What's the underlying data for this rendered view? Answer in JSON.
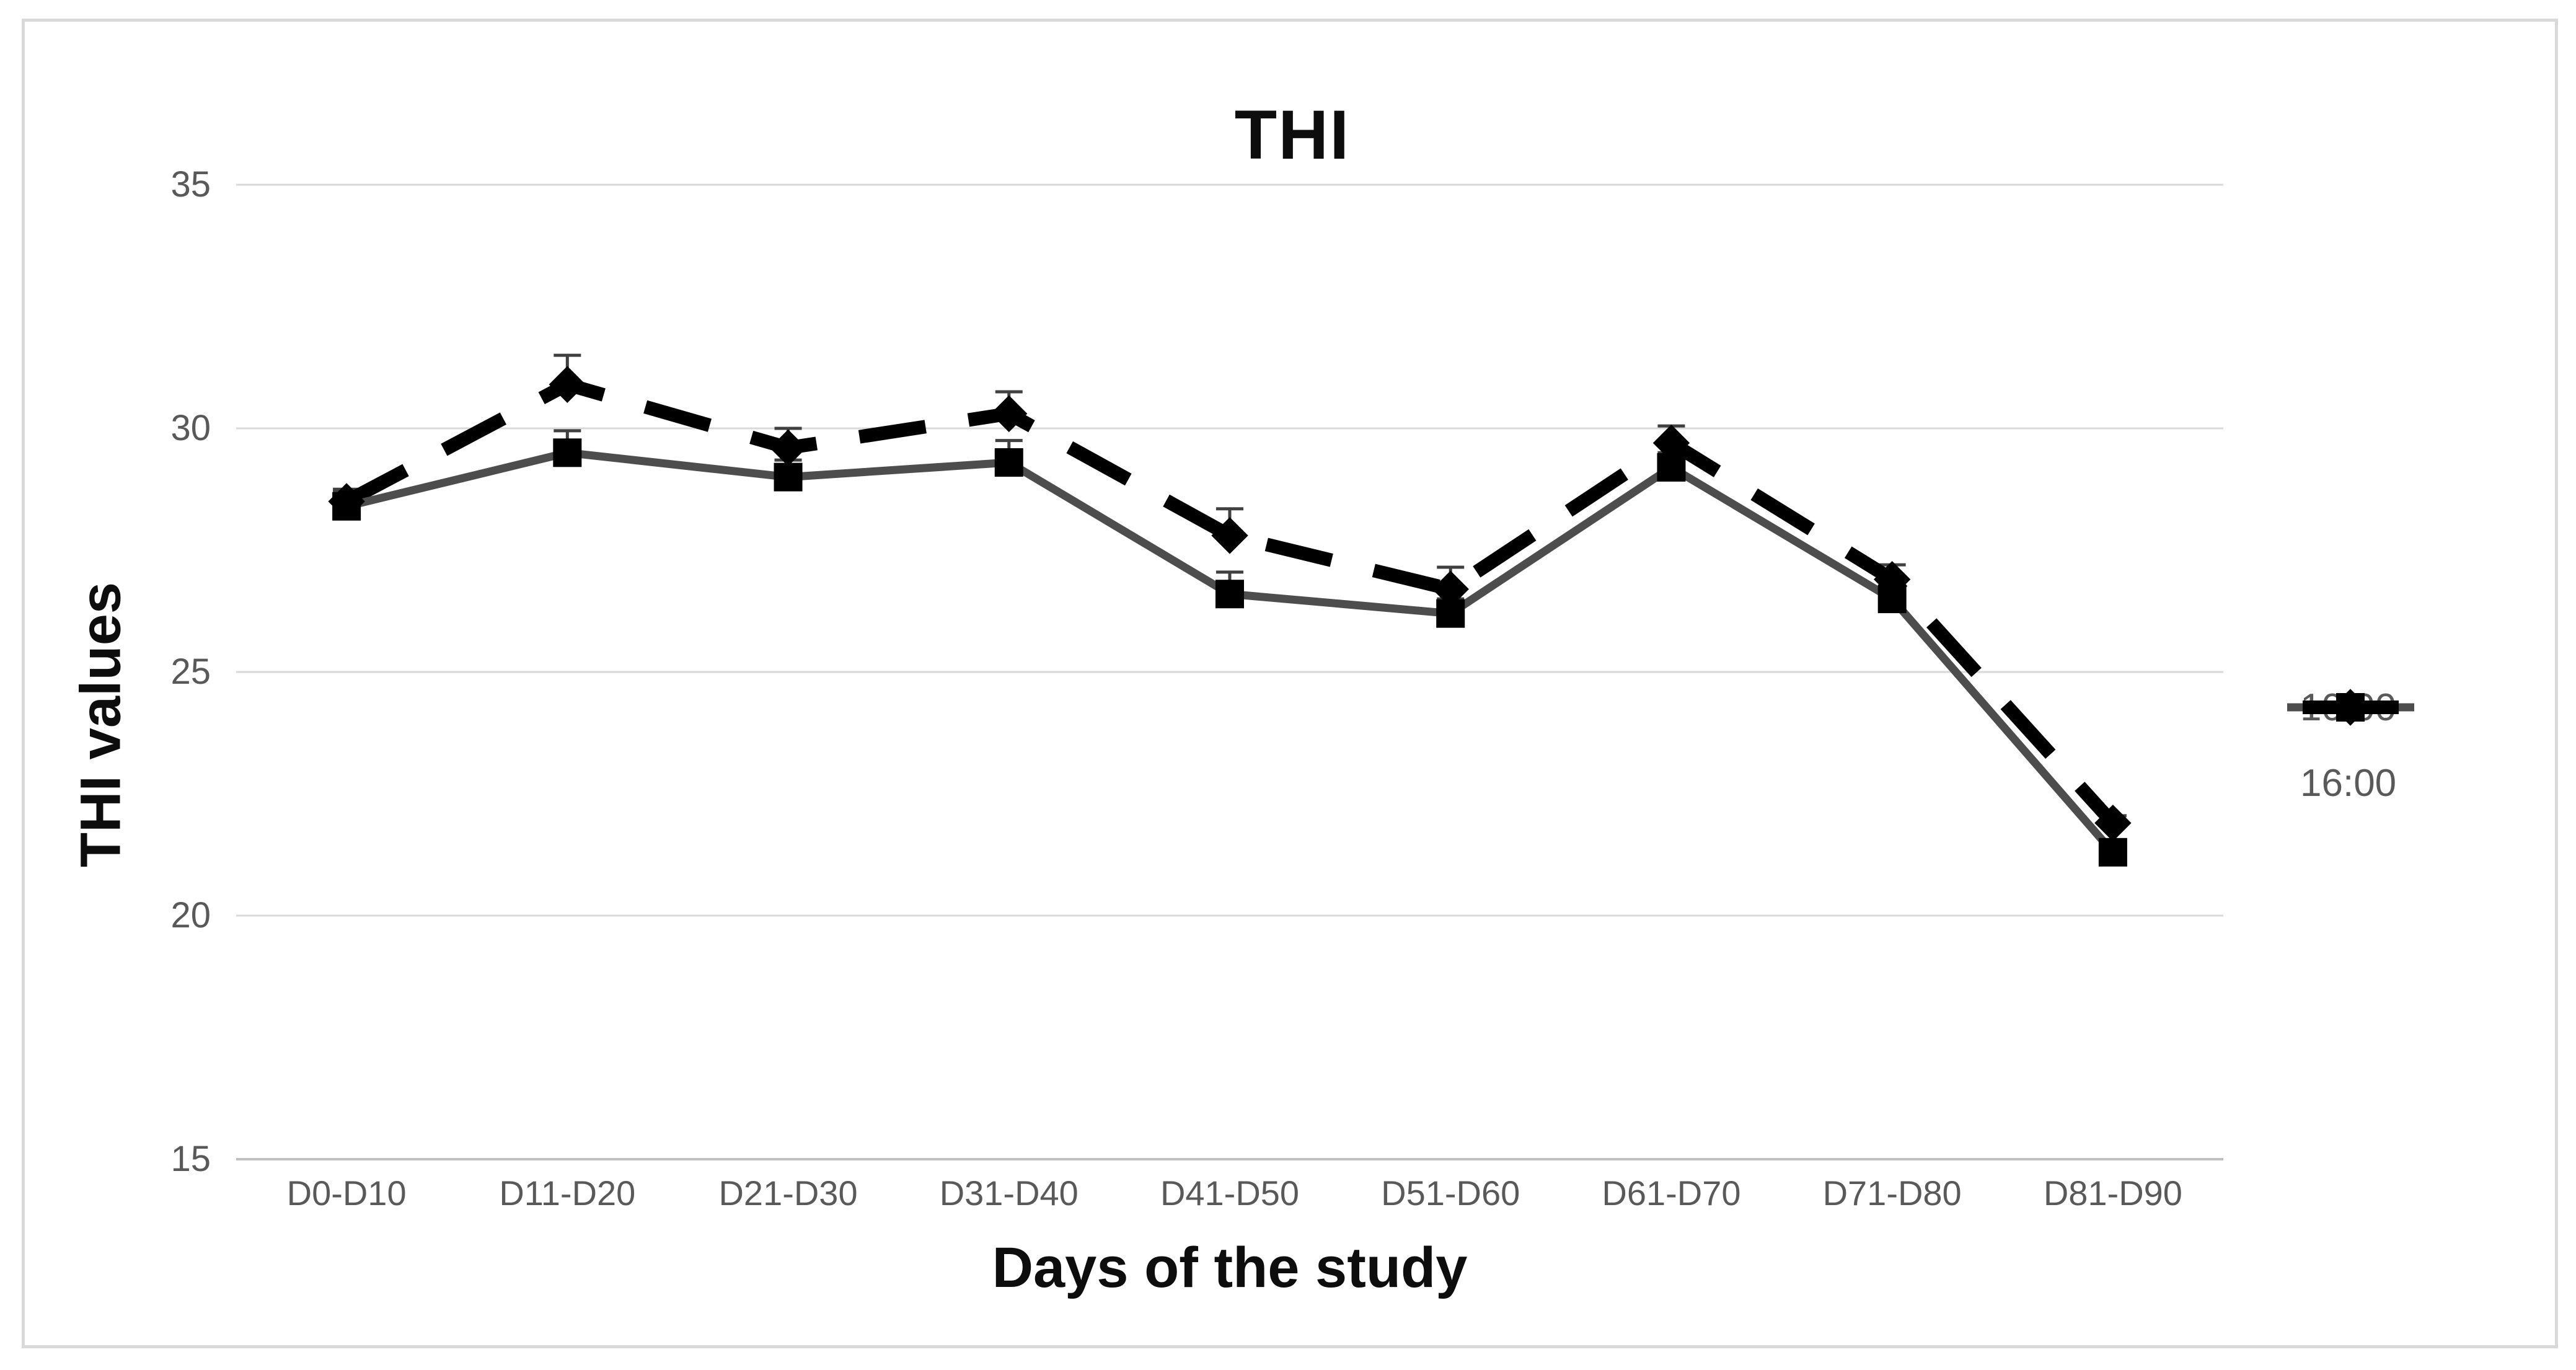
{
  "chart_data": {
    "type": "line",
    "title": "THI",
    "xlabel": "Days of the study",
    "ylabel": "THI values",
    "categories": [
      "D0-D10",
      "D11-D20",
      "D21-D30",
      "D31-D40",
      "D41-D50",
      "D51-D60",
      "D61-D70",
      "D71-D80",
      "D81-D90"
    ],
    "y_ticks": [
      35,
      30,
      25,
      20,
      15
    ],
    "ylim": [
      15,
      35
    ],
    "grid": "horizontal-only",
    "legend_position": "right-middle",
    "series": [
      {
        "name": "10:00",
        "values": [
          28.4,
          29.5,
          29.0,
          29.3,
          26.6,
          26.2,
          29.2,
          26.5,
          21.3
        ],
        "error_up": [
          0.3,
          0.45,
          0.35,
          0.45,
          0.45,
          0.3,
          0.3,
          0.3,
          0.15
        ],
        "line_style": "solid",
        "marker": "square",
        "line_color": "#4d4d4d",
        "marker_color": "#000000"
      },
      {
        "name": "16:00",
        "values": [
          28.5,
          30.9,
          29.6,
          30.3,
          27.8,
          26.7,
          29.7,
          26.9,
          21.9
        ],
        "error_up": [
          0.25,
          0.6,
          0.4,
          0.45,
          0.55,
          0.45,
          0.35,
          0.3,
          0.15
        ],
        "line_style": "dashed",
        "marker": "diamond",
        "line_color": "#000000",
        "marker_color": "#000000"
      }
    ]
  },
  "colors": {
    "background": "#ffffff",
    "frame_border": "#d9d9d9",
    "gridline": "#d9d9d9",
    "axis_line": "#bfbfbf",
    "tick_text": "#595959",
    "legend_text": "#595959",
    "title_text": "#0d0d0d",
    "error_bar": "#404040"
  }
}
